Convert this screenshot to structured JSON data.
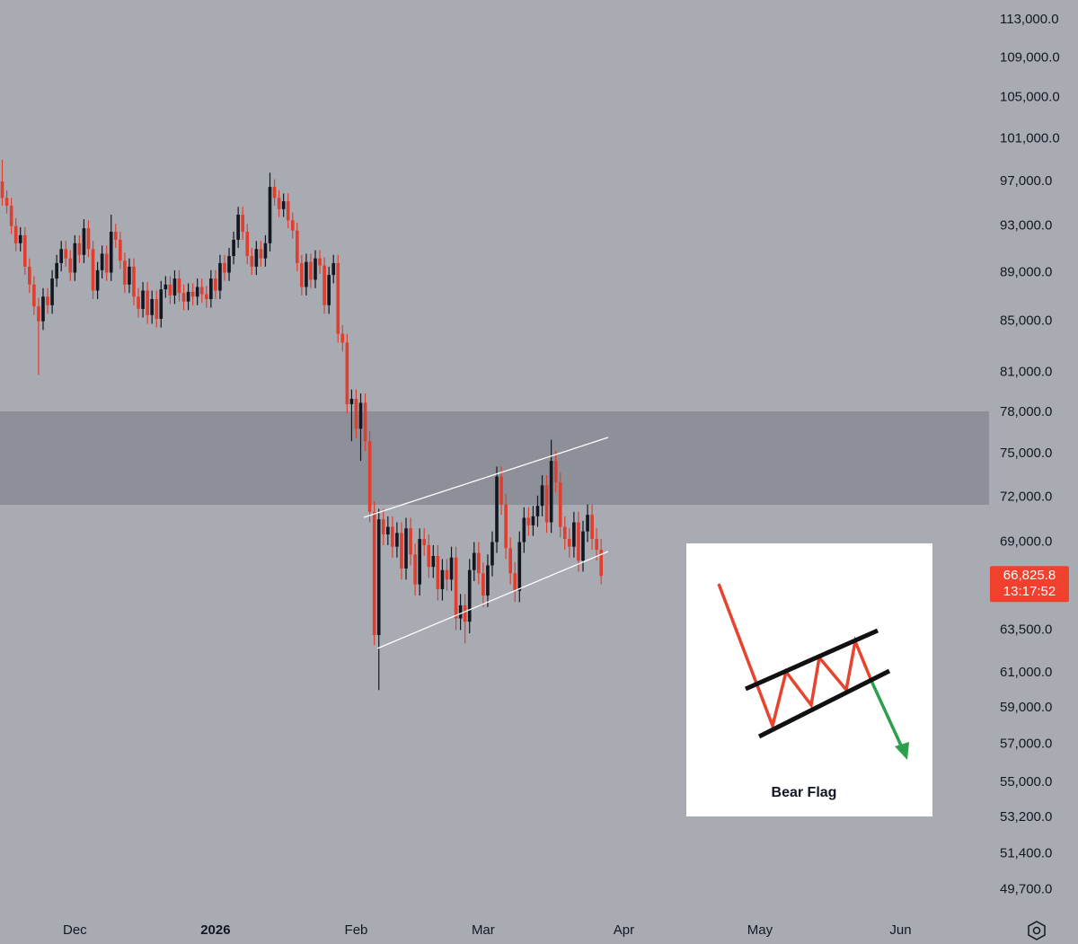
{
  "chart_data": {
    "type": "candlestick",
    "log_scale": true,
    "up_color": "#131722",
    "down_color": "#df3f2e",
    "ylim": [
      48670,
      115130
    ],
    "yticks": [
      {
        "value": 113000,
        "label": "113,000.0"
      },
      {
        "value": 109000,
        "label": "109,000.0"
      },
      {
        "value": 105000,
        "label": "105,000.0"
      },
      {
        "value": 101000,
        "label": "101,000.0"
      },
      {
        "value": 97000,
        "label": "97,000.0"
      },
      {
        "value": 93000,
        "label": "93,000.0"
      },
      {
        "value": 89000,
        "label": "89,000.0"
      },
      {
        "value": 85000,
        "label": "85,000.0"
      },
      {
        "value": 81000,
        "label": "81,000.0"
      },
      {
        "value": 78000,
        "label": "78,000.0"
      },
      {
        "value": 75000,
        "label": "75,000.0"
      },
      {
        "value": 72000,
        "label": "72,000.0"
      },
      {
        "value": 69000,
        "label": "69,000.0"
      },
      {
        "value": 63500,
        "label": "63,500.0"
      },
      {
        "value": 61000,
        "label": "61,000.0"
      },
      {
        "value": 59000,
        "label": "59,000.0"
      },
      {
        "value": 57000,
        "label": "57,000.0"
      },
      {
        "value": 55000,
        "label": "55,000.0"
      },
      {
        "value": 53200,
        "label": "53,200.0"
      },
      {
        "value": 51400,
        "label": "51,400.0"
      },
      {
        "value": 49700,
        "label": "49,700.0"
      }
    ],
    "last_price": {
      "value": 66825.8,
      "label": "66,825.8"
    },
    "countdown": "13:17:52",
    "annotation": "Bear Flag",
    "categories": [
      null,
      null,
      null,
      null,
      null,
      null,
      null,
      null,
      null,
      null,
      null,
      null,
      null,
      null,
      null,
      null,
      "Dec",
      null,
      null,
      null,
      null,
      null,
      null,
      null,
      null,
      null,
      null,
      null,
      null,
      null,
      null,
      null,
      null,
      null,
      null,
      null,
      null,
      null,
      null,
      null,
      null,
      null,
      null,
      null,
      null,
      null,
      null,
      "2026",
      null,
      null,
      null,
      null,
      null,
      null,
      null,
      null,
      null,
      null,
      null,
      null,
      null,
      null,
      null,
      null,
      null,
      null,
      null,
      null,
      null,
      null,
      null,
      null,
      null,
      null,
      null,
      null,
      null,
      null,
      "Feb",
      null,
      null,
      null,
      null,
      null,
      null,
      null,
      null,
      null,
      null,
      null,
      null,
      null,
      null,
      null,
      null,
      null,
      null,
      null,
      null,
      null,
      null,
      null,
      null,
      null,
      null,
      null,
      "Mar",
      null,
      null,
      null,
      null,
      null,
      null,
      null,
      null,
      null,
      null,
      null,
      null,
      null,
      null,
      null,
      null,
      null,
      null,
      null,
      null,
      null,
      null,
      null,
      null,
      null,
      null,
      null,
      null,
      null,
      null,
      "Apr",
      null,
      null,
      null,
      null,
      null,
      null,
      null,
      null,
      null,
      null,
      null,
      null,
      null,
      null,
      null,
      null,
      null,
      null,
      null,
      null,
      null,
      null,
      null,
      null,
      null,
      null,
      null,
      null,
      null,
      "May",
      null,
      null,
      null,
      null,
      null,
      null,
      null,
      null,
      null,
      null,
      null,
      null,
      null,
      null,
      null,
      null,
      null,
      null,
      null,
      null,
      null,
      null,
      null,
      null,
      null,
      null,
      null,
      null,
      null,
      null,
      "Jun",
      null,
      null,
      null,
      null,
      null,
      null,
      null,
      null,
      null,
      null,
      null,
      null,
      null,
      null,
      null,
      null,
      null,
      null,
      null
    ],
    "open": [
      97000,
      95500,
      94800,
      93000,
      91500,
      92200,
      89500,
      88000,
      86200,
      85000,
      87000,
      86300,
      88500,
      89800,
      91000,
      90200,
      89000,
      91500,
      90500,
      92800,
      91000,
      87500,
      89200,
      90600,
      89000,
      92500,
      91800,
      90000,
      88000,
      89500,
      87000,
      86000,
      87500,
      85500,
      86800,
      85200,
      87600,
      88000,
      87100,
      88500,
      87300,
      86600,
      87400,
      87000,
      87800,
      87200,
      86800,
      88500,
      87500,
      89800,
      89000,
      90400,
      91800,
      94000,
      92500,
      90400,
      89500,
      91000,
      90200,
      91500,
      96500,
      95500,
      94500,
      95200,
      93500,
      92600,
      89800,
      87800,
      89900,
      88400,
      90200,
      89600,
      86300,
      88800,
      89800,
      84000,
      83300,
      78600,
      79000,
      76800,
      78700,
      75900,
      71000,
      63200,
      70500,
      69500,
      70000,
      68700,
      69600,
      67300,
      69900,
      68200,
      66300,
      69200,
      68800,
      67400,
      68100,
      66000,
      67200,
      66600,
      68000,
      64200,
      65000,
      64000,
      67200,
      68300,
      67000,
      65600,
      67500,
      69000,
      73400,
      71500,
      68600,
      67000,
      65900,
      69000,
      70600,
      70100,
      70700,
      71400,
      72800,
      70300,
      74500,
      73000,
      70000,
      69200,
      68700,
      70300,
      67800,
      69700,
      70800,
      69200,
      68500,
      null,
      null,
      null,
      null,
      null,
      null,
      null,
      null,
      null,
      null,
      null,
      null,
      null,
      null,
      null,
      null,
      null,
      null,
      null,
      null,
      null,
      null,
      null,
      null,
      null,
      null,
      null,
      null,
      null,
      null,
      null,
      null,
      null,
      null,
      null,
      null,
      null,
      null,
      null,
      null,
      null,
      null,
      null,
      null,
      null,
      null,
      null,
      null,
      null,
      null,
      null,
      null,
      null,
      null,
      null,
      null,
      null,
      null,
      null,
      null,
      null,
      null,
      null,
      null,
      null,
      null,
      null,
      null,
      null,
      null,
      null,
      null,
      null,
      null,
      null,
      null,
      null,
      null,
      null,
      null,
      null,
      null,
      null,
      null,
      null
    ],
    "high": [
      99000,
      96200,
      95500,
      93700,
      92900,
      92900,
      90200,
      88700,
      86900,
      87700,
      87700,
      89200,
      90500,
      91700,
      91700,
      90900,
      92200,
      92200,
      93600,
      93500,
      91700,
      89900,
      91300,
      91300,
      94000,
      93200,
      92500,
      90700,
      90200,
      90200,
      87700,
      88200,
      88200,
      87500,
      87500,
      88300,
      88700,
      88700,
      89200,
      89200,
      88000,
      88100,
      88100,
      88500,
      88500,
      87900,
      89200,
      89200,
      90500,
      90500,
      91100,
      92500,
      94700,
      94700,
      93200,
      91100,
      91700,
      91700,
      92200,
      97800,
      97200,
      96200,
      95900,
      95900,
      94200,
      93300,
      90500,
      90600,
      90600,
      90900,
      90900,
      90300,
      89500,
      90500,
      90500,
      84700,
      84000,
      79700,
      79700,
      79400,
      79400,
      76600,
      71700,
      71200,
      71200,
      70700,
      70700,
      70300,
      70300,
      70600,
      70600,
      68900,
      69900,
      69900,
      69500,
      68800,
      68800,
      67900,
      67900,
      68700,
      68700,
      65700,
      65700,
      67900,
      69000,
      69000,
      67700,
      68200,
      69700,
      74100,
      74100,
      72200,
      69300,
      67700,
      69700,
      71300,
      71300,
      71400,
      72100,
      73500,
      73500,
      76000,
      75200,
      73700,
      70700,
      69900,
      71000,
      71000,
      70400,
      71500,
      71500,
      69900,
      69200,
      null,
      null,
      null,
      null,
      null,
      null,
      null,
      null,
      null,
      null,
      null,
      null,
      null,
      null,
      null,
      null,
      null,
      null,
      null,
      null,
      null,
      null,
      null,
      null,
      null,
      null,
      null,
      null,
      null,
      null,
      null,
      null,
      null,
      null,
      null,
      null,
      null,
      null,
      null,
      null,
      null,
      null,
      null,
      null,
      null,
      null,
      null,
      null,
      null,
      null,
      null,
      null,
      null,
      null,
      null,
      null,
      null,
      null,
      null,
      null,
      null,
      null,
      null,
      null,
      null,
      null,
      null,
      null,
      null,
      null,
      null,
      null,
      null,
      null,
      null,
      null,
      null,
      null,
      null,
      null,
      null,
      null,
      null,
      null,
      null
    ],
    "low": [
      94800,
      94100,
      92300,
      90800,
      90800,
      88800,
      87300,
      85500,
      80800,
      84300,
      85600,
      85600,
      87800,
      89100,
      89500,
      88300,
      88300,
      89800,
      89800,
      90300,
      86800,
      86800,
      88500,
      88300,
      88300,
      91100,
      89300,
      87300,
      87300,
      86300,
      85300,
      85300,
      84800,
      84800,
      84500,
      84500,
      86900,
      86400,
      86400,
      86600,
      85900,
      85900,
      86300,
      86300,
      86500,
      86100,
      86100,
      86800,
      86800,
      88300,
      88300,
      89700,
      91100,
      91800,
      89700,
      88800,
      88800,
      89500,
      89500,
      90800,
      94800,
      93800,
      93800,
      92800,
      91900,
      89100,
      87100,
      87100,
      87700,
      87700,
      88900,
      85600,
      85600,
      88100,
      83300,
      82600,
      77900,
      75900,
      76100,
      74500,
      75200,
      70300,
      62600,
      60000,
      68800,
      68800,
      68000,
      68000,
      66600,
      66600,
      67500,
      65600,
      65600,
      68100,
      66700,
      66700,
      65300,
      65300,
      65900,
      65900,
      63500,
      63500,
      62700,
      63300,
      66500,
      66300,
      64900,
      64900,
      66800,
      68300,
      70800,
      67900,
      66300,
      65200,
      65200,
      68300,
      69400,
      69400,
      70000,
      70700,
      69600,
      69600,
      72300,
      69300,
      68500,
      68000,
      68000,
      67100,
      67100,
      69000,
      68500,
      67800,
      66300,
      null,
      null,
      null,
      null,
      null,
      null,
      null,
      null,
      null,
      null,
      null,
      null,
      null,
      null,
      null,
      null,
      null,
      null,
      null,
      null,
      null,
      null,
      null,
      null,
      null,
      null,
      null,
      null,
      null,
      null,
      null,
      null,
      null,
      null,
      null,
      null,
      null,
      null,
      null,
      null,
      null,
      null,
      null,
      null,
      null,
      null,
      null,
      null,
      null,
      null,
      null,
      null,
      null,
      null,
      null,
      null,
      null,
      null,
      null,
      null,
      null,
      null,
      null,
      null,
      null,
      null,
      null,
      null,
      null,
      null,
      null,
      null,
      null,
      null,
      null,
      null,
      null,
      null,
      null,
      null,
      null,
      null,
      null,
      null,
      null
    ],
    "close": [
      95500,
      94800,
      93000,
      91500,
      92200,
      89500,
      88000,
      86200,
      85000,
      87000,
      86300,
      88500,
      89800,
      91000,
      90200,
      89000,
      91500,
      90500,
      92800,
      91000,
      87500,
      89200,
      90600,
      89000,
      92500,
      91800,
      90000,
      88000,
      89500,
      87000,
      86000,
      87500,
      85500,
      86800,
      85200,
      87600,
      88000,
      87100,
      88500,
      87300,
      86600,
      87400,
      87000,
      87800,
      87200,
      86800,
      88500,
      87500,
      89800,
      89000,
      90400,
      91800,
      94000,
      92500,
      90400,
      89500,
      91000,
      90200,
      91500,
      96500,
      95500,
      94500,
      95200,
      93500,
      92600,
      89800,
      87800,
      89900,
      88400,
      90200,
      89600,
      86300,
      88800,
      89800,
      84000,
      83300,
      78600,
      79000,
      76800,
      78700,
      75900,
      71000,
      63200,
      70500,
      69500,
      70000,
      68700,
      69600,
      67300,
      69900,
      68200,
      66300,
      69200,
      68800,
      67400,
      68100,
      66000,
      67200,
      66600,
      68000,
      64200,
      65000,
      64000,
      67200,
      68300,
      67000,
      65600,
      67500,
      69000,
      73400,
      71500,
      68600,
      67000,
      65900,
      69000,
      70600,
      70100,
      70700,
      71400,
      72800,
      70300,
      74500,
      73000,
      70000,
      69200,
      68700,
      70300,
      67800,
      69700,
      70800,
      69200,
      68500,
      66825.8,
      null,
      null,
      null,
      null,
      null,
      null,
      null,
      null,
      null,
      null,
      null,
      null,
      null,
      null,
      null,
      null,
      null,
      null,
      null,
      null,
      null,
      null,
      null,
      null,
      null,
      null,
      null,
      null,
      null,
      null,
      null,
      null,
      null,
      null,
      null,
      null,
      null,
      null,
      null,
      null,
      null,
      null,
      null,
      null,
      null,
      null,
      null,
      null,
      null,
      null,
      null,
      null,
      null,
      null,
      null,
      null,
      null,
      null,
      null,
      null,
      null,
      null,
      null,
      null,
      null,
      null,
      null,
      null,
      null,
      null,
      null,
      null,
      null,
      null,
      null,
      null,
      null,
      null,
      null,
      null,
      null,
      null,
      null,
      null,
      null
    ]
  }
}
